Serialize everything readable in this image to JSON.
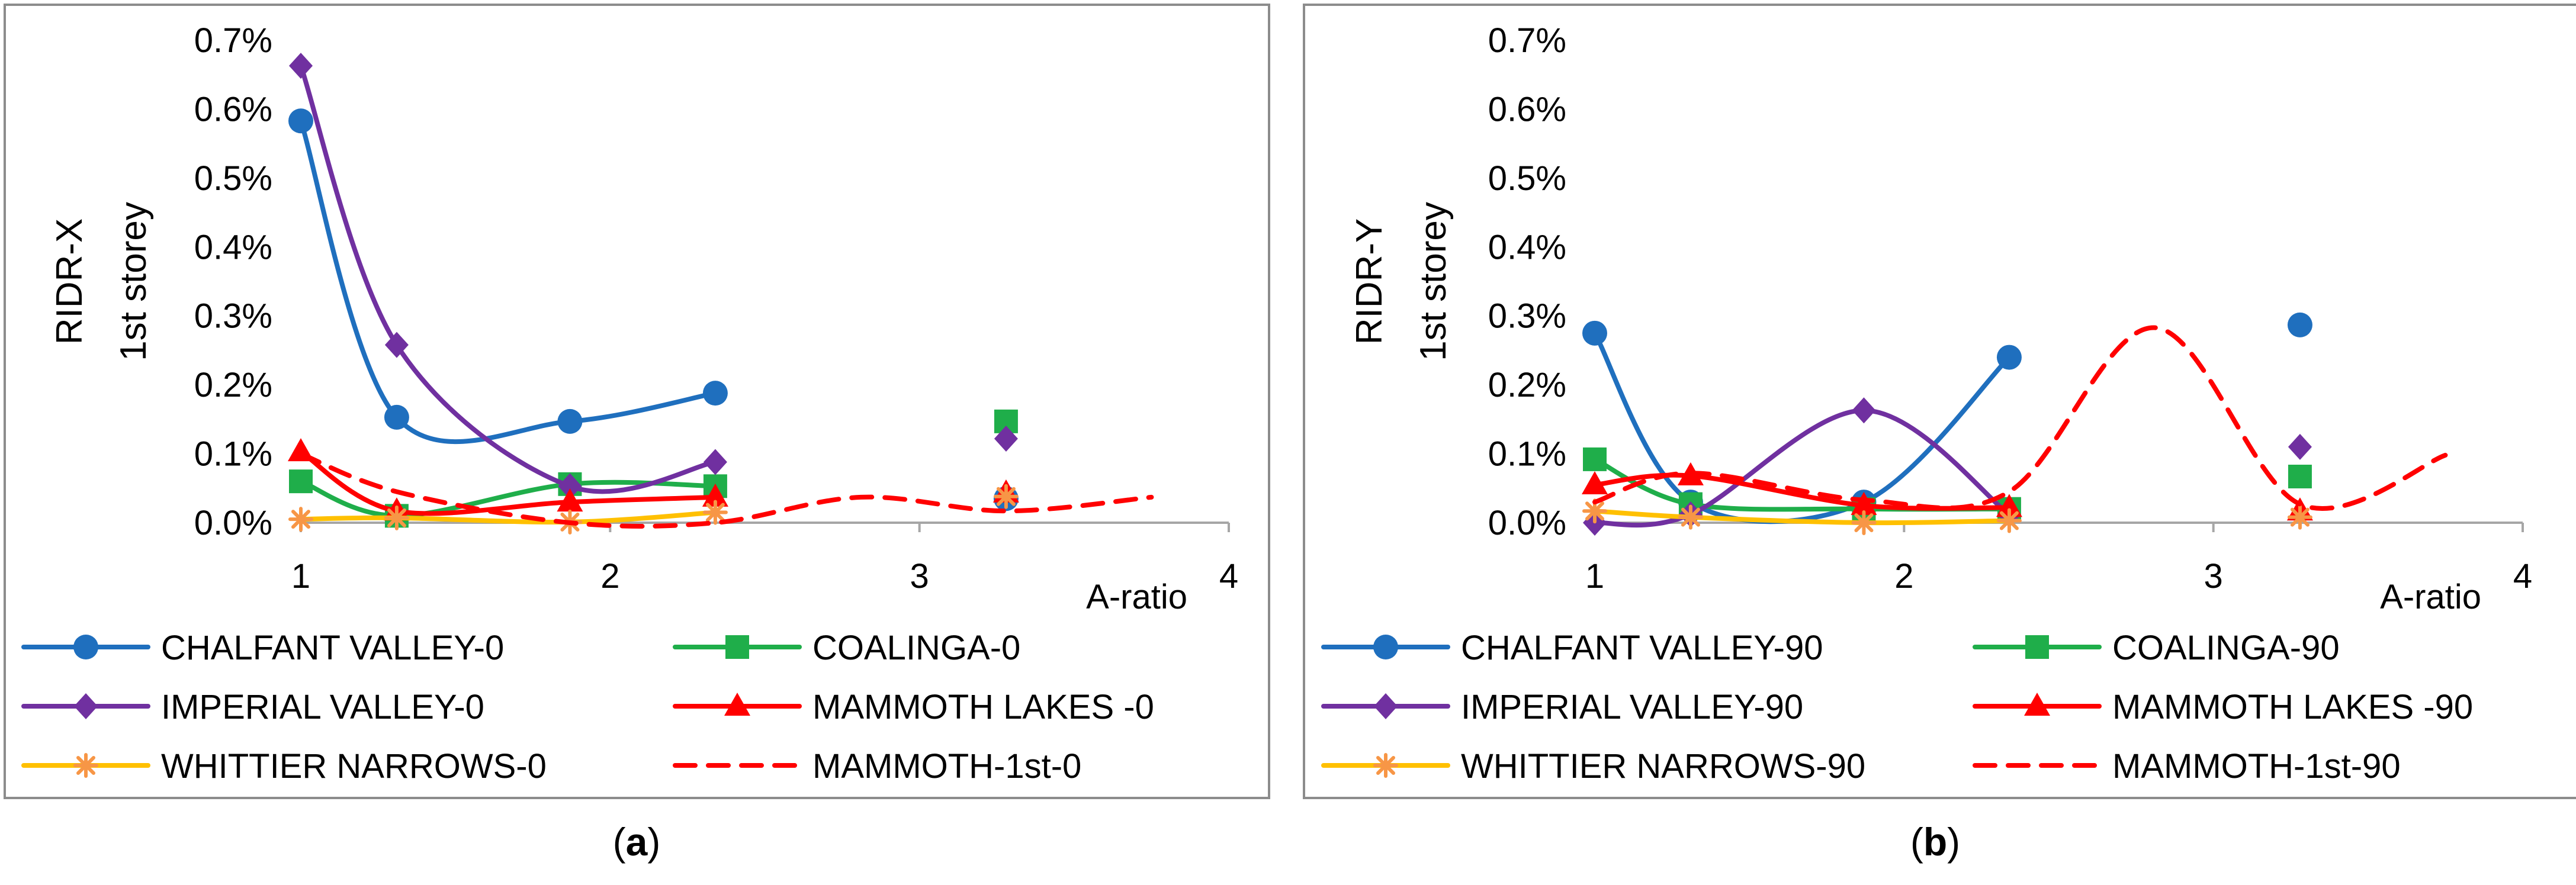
{
  "colors": {
    "chalfant": "#1f6fbe",
    "coalinga": "#1fae4a",
    "imperial": "#7030a0",
    "mammoth": "#ff0000",
    "whittier": "#ffc000",
    "whittier_marker": "#f79646",
    "axis": "#a6a6a6",
    "frame": "#8c8c8c"
  },
  "panels": [
    {
      "caption": "a",
      "caption_open": "(",
      "caption_close": ")"
    },
    {
      "caption": "b",
      "caption_open": "(",
      "caption_close": ")"
    }
  ],
  "chart_data": [
    {
      "type": "scatter",
      "title": "",
      "ylabel_line1": "RIDR-X",
      "ylabel_line2": "1st storey",
      "xlabel": "A-ratio",
      "xlim": [
        1,
        4
      ],
      "ylim": [
        0,
        0.007
      ],
      "x_ticks": [
        1,
        2,
        3,
        4
      ],
      "y_ticks": [
        0,
        0.001,
        0.002,
        0.003,
        0.004,
        0.005,
        0.006,
        0.007
      ],
      "x_tick_labels": [
        "1",
        "2",
        "3",
        "4"
      ],
      "y_tick_labels": [
        "0.0%",
        "0.1%",
        "0.2%",
        "0.3%",
        "0.4%",
        "0.5%",
        "0.6%",
        "0.7%"
      ],
      "series": [
        {
          "name": "CHALFANT VALLEY-0",
          "color_key": "chalfant",
          "marker": "circle",
          "line": "solid",
          "x": [
            1,
            1.31,
            1.87,
            2.34
          ],
          "y": [
            0.00583,
            0.00153,
            0.00147,
            0.00188
          ],
          "extra": {
            "x": 3.28,
            "y": 0.00035
          }
        },
        {
          "name": "COALINGA-0",
          "color_key": "coalinga",
          "marker": "square",
          "line": "solid",
          "x": [
            1,
            1.31,
            1.87,
            2.34
          ],
          "y": [
            0.0006,
            0.0001,
            0.00056,
            0.00053
          ],
          "extra": {
            "x": 3.28,
            "y": 0.00147
          }
        },
        {
          "name": "IMPERIAL VALLEY-0",
          "color_key": "imperial",
          "marker": "diamond",
          "line": "solid",
          "x": [
            1,
            1.31,
            1.87,
            2.34
          ],
          "y": [
            0.00663,
            0.00258,
            0.00053,
            0.00088
          ],
          "extra": {
            "x": 3.28,
            "y": 0.00122
          }
        },
        {
          "name": "MAMMOTH LAKES -0",
          "color_key": "mammoth",
          "marker": "triangle",
          "line": "solid",
          "x": [
            1,
            1.31,
            1.87,
            2.34
          ],
          "y": [
            0.00103,
            0.00017,
            0.0003,
            0.00037
          ],
          "extra": {
            "x": 3.28,
            "y": 0.00043
          }
        },
        {
          "name": "WHITTIER NARROWS-0",
          "color_key": "whittier",
          "marker": "star",
          "line": "solid",
          "x": [
            1,
            1.31,
            1.87,
            2.34
          ],
          "y": [
            5e-05,
            7e-05,
            1e-05,
            0.00015
          ],
          "extra": {
            "x": 3.28,
            "y": 0.00038
          }
        },
        {
          "name": "MAMMOTH-1st-0",
          "color_key": "mammoth",
          "marker": "none",
          "line": "dashed",
          "x": [
            1,
            1.31,
            1.87,
            2.34,
            2.81,
            3.28,
            3.75
          ],
          "y": [
            0.001,
            0.00045,
            0.0,
            0.0,
            0.00037,
            0.00017,
            0.00037
          ]
        }
      ]
    },
    {
      "type": "scatter",
      "title": "",
      "ylabel_line1": "RIDR-Y",
      "ylabel_line2": "1st storey",
      "xlabel": "A-ratio",
      "xlim": [
        1,
        4
      ],
      "ylim": [
        0,
        0.007
      ],
      "x_ticks": [
        1,
        2,
        3,
        4
      ],
      "y_ticks": [
        0,
        0.001,
        0.002,
        0.003,
        0.004,
        0.005,
        0.006,
        0.007
      ],
      "x_tick_labels": [
        "1",
        "2",
        "3",
        "4"
      ],
      "y_tick_labels": [
        "0.0%",
        "0.1%",
        "0.2%",
        "0.3%",
        "0.4%",
        "0.5%",
        "0.6%",
        "0.7%"
      ],
      "series": [
        {
          "name": "CHALFANT VALLEY-90",
          "color_key": "chalfant",
          "marker": "circle",
          "line": "solid",
          "x": [
            1,
            1.31,
            1.87,
            2.34
          ],
          "y": [
            0.00275,
            0.0003,
            0.0003,
            0.0024
          ],
          "extra": {
            "x": 3.28,
            "y": 0.00287
          }
        },
        {
          "name": "COALINGA-90",
          "color_key": "coalinga",
          "marker": "square",
          "line": "solid",
          "x": [
            1,
            1.31,
            1.87,
            2.34
          ],
          "y": [
            0.00092,
            0.00027,
            0.0002,
            0.0002
          ],
          "extra": {
            "x": 3.28,
            "y": 0.00067
          }
        },
        {
          "name": "IMPERIAL VALLEY-90",
          "color_key": "imperial",
          "marker": "diamond",
          "line": "solid",
          "x": [
            1,
            1.31,
            1.87,
            2.34
          ],
          "y": [
            0.0,
            0.00012,
            0.00163,
            0.00012
          ],
          "extra": {
            "x": 3.28,
            "y": 0.0011
          }
        },
        {
          "name": "MAMMOTH LAKES -90",
          "color_key": "mammoth",
          "marker": "triangle",
          "line": "solid",
          "x": [
            1,
            1.31,
            1.87,
            2.34
          ],
          "y": [
            0.00055,
            0.00068,
            0.00025,
            0.00022
          ],
          "extra": {
            "x": 3.28,
            "y": 0.00017
          }
        },
        {
          "name": "WHITTIER NARROWS-90",
          "color_key": "whittier",
          "marker": "star",
          "line": "solid",
          "x": [
            1,
            1.31,
            1.87,
            2.34
          ],
          "y": [
            0.00017,
            8e-05,
            0.0,
            3e-05
          ],
          "extra": {
            "x": 3.28,
            "y": 8e-05
          }
        },
        {
          "name": "MAMMOTH-1st-90",
          "color_key": "mammoth",
          "marker": "none",
          "line": "dashed",
          "x": [
            1,
            1.31,
            1.87,
            2.34,
            2.81,
            3.28,
            3.75
          ],
          "y": [
            0.0003,
            0.00072,
            0.00033,
            0.00045,
            0.00283,
            0.00027,
            0.00098
          ]
        }
      ]
    }
  ]
}
